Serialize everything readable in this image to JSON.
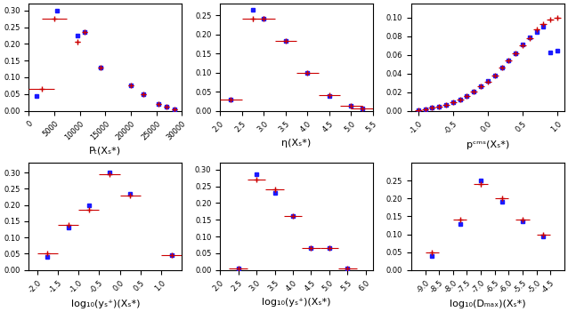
{
  "chart_data": [
    {
      "type": "scatter",
      "x_label": "Pₜ(Xₛ*)",
      "xlim": [
        0,
        30000
      ],
      "ylim": [
        0,
        0.32
      ],
      "xticks": [
        0,
        5000,
        10000,
        15000,
        20000,
        25000,
        30000
      ],
      "yticks": [
        {
          "value": 0,
          "label": "0.00"
        },
        0.05,
        {
          "value": 0.1,
          "label": "0.10"
        },
        0.15,
        {
          "value": 0.2,
          "label": "0.20"
        },
        0.25,
        {
          "value": 0.3,
          "label": "0.30"
        }
      ],
      "series": [
        {
          "color": "#1a1aff",
          "marker": "square",
          "x": [
            1500,
            5500,
            9500,
            11000,
            14000,
            20000,
            22500,
            25500,
            27000,
            28500
          ],
          "values": [
            0.045,
            0.3,
            0.225,
            0.235,
            0.13,
            0.075,
            0.05,
            0.02,
            0.012,
            0.005
          ]
        },
        {
          "color": "#cc0000",
          "marker": "plus",
          "x": [
            2500,
            5000,
            9500,
            11000,
            14000,
            20000,
            22500,
            25500,
            27000,
            28500
          ],
          "values": [
            0.065,
            0.275,
            0.205,
            0.235,
            0.13,
            0.075,
            0.05,
            0.02,
            0.012,
            0.005
          ],
          "xerr": [
            2500,
            2500,
            500,
            500,
            500,
            500,
            500,
            500,
            500,
            500
          ],
          "yerr": [
            0.004,
            0.006,
            0.006,
            0.006,
            0.005,
            0.004,
            0.003,
            0.002,
            0.001,
            0.001
          ]
        }
      ]
    },
    {
      "type": "scatter",
      "x_label": "η(Xₛ*)",
      "xlim": [
        2.0,
        5.5
      ],
      "ylim": [
        0,
        0.28
      ],
      "xticks": [
        2.0,
        2.5,
        3.0,
        3.5,
        4.0,
        4.5,
        5.0,
        5.5
      ],
      "yticks": [
        {
          "value": 0,
          "label": "0.00"
        },
        0.05,
        {
          "value": 0.1,
          "label": "0.10"
        },
        0.15,
        {
          "value": 0.2,
          "label": "0.20"
        },
        0.25
      ],
      "series": [
        {
          "color": "#1a1aff",
          "marker": "square",
          "x": [
            2.25,
            2.75,
            3.0,
            3.5,
            4.0,
            4.5,
            5.0,
            5.25
          ],
          "values": [
            0.03,
            0.265,
            0.242,
            0.183,
            0.098,
            0.038,
            0.013,
            0.005
          ]
        },
        {
          "color": "#cc0000",
          "marker": "plus",
          "x": [
            2.25,
            2.75,
            3.0,
            3.5,
            4.0,
            4.5,
            5.0,
            5.25
          ],
          "values": [
            0.03,
            0.24,
            0.242,
            0.183,
            0.1,
            0.04,
            0.012,
            0.005
          ],
          "xerr": [
            0.25,
            0.25,
            0.25,
            0.25,
            0.25,
            0.25,
            0.25,
            0.25
          ],
          "yerr": [
            0.003,
            0.005,
            0.005,
            0.005,
            0.004,
            0.003,
            0.002,
            0.001
          ]
        }
      ]
    },
    {
      "type": "scatter",
      "x_label": "pᶜᵐˢ(Xₛ*)",
      "xlim": [
        -1.1,
        1.1
      ],
      "ylim": [
        0,
        0.115
      ],
      "xticks": [
        -1.0,
        -0.5,
        0.0,
        0.5,
        1.0
      ],
      "yticks": [
        {
          "value": 0,
          "label": "0.00"
        },
        0.02,
        0.04,
        0.06,
        0.08,
        {
          "value": 0.1,
          "label": "0.10"
        }
      ],
      "series": [
        {
          "color": "#1a1aff",
          "marker": "square",
          "x": [
            -1.0,
            -0.9,
            -0.8,
            -0.7,
            -0.6,
            -0.5,
            -0.4,
            -0.3,
            -0.2,
            -0.1,
            0.0,
            0.1,
            0.2,
            0.3,
            0.4,
            0.5,
            0.6,
            0.7,
            0.8,
            0.9,
            1.0
          ],
          "values": [
            0.001,
            0.002,
            0.003,
            0.004,
            0.006,
            0.009,
            0.012,
            0.016,
            0.021,
            0.026,
            0.032,
            0.038,
            0.046,
            0.054,
            0.062,
            0.071,
            0.079,
            0.085,
            0.09,
            0.063,
            0.065
          ]
        },
        {
          "color": "#cc0000",
          "marker": "plus",
          "x": [
            -1.0,
            -0.9,
            -0.8,
            -0.7,
            -0.6,
            -0.5,
            -0.4,
            -0.3,
            -0.2,
            -0.1,
            0.0,
            0.1,
            0.2,
            0.3,
            0.4,
            0.5,
            0.6,
            0.7,
            0.8,
            0.9,
            1.0
          ],
          "values": [
            0.001,
            0.002,
            0.003,
            0.004,
            0.006,
            0.009,
            0.012,
            0.016,
            0.021,
            0.026,
            0.031,
            0.038,
            0.046,
            0.054,
            0.062,
            0.07,
            0.078,
            0.087,
            0.093,
            0.098,
            0.1
          ],
          "xerr": [
            0.05,
            0.05,
            0.05,
            0.05,
            0.05,
            0.05,
            0.05,
            0.05,
            0.05,
            0.05,
            0.05,
            0.05,
            0.05,
            0.05,
            0.05,
            0.05,
            0.05,
            0.05,
            0.05,
            0.05,
            0.05
          ],
          "yerr": [
            0.001,
            0.001,
            0.001,
            0.001,
            0.001,
            0.001,
            0.001,
            0.001,
            0.001,
            0.001,
            0.001,
            0.001,
            0.001,
            0.001,
            0.001,
            0.001,
            0.001,
            0.001,
            0.001,
            0.001,
            0.002
          ]
        }
      ]
    },
    {
      "type": "scatter",
      "x_label": "log₁₀(yₛ⁺)(Xₛ*)",
      "xlim": [
        -2.2,
        1.5
      ],
      "ylim": [
        0,
        0.33
      ],
      "xticks": [
        -2.0,
        -1.5,
        -1.0,
        -0.5,
        0.0,
        0.5,
        1.0
      ],
      "yticks": [
        {
          "value": 0,
          "label": "0.00"
        },
        0.05,
        {
          "value": 0.1,
          "label": "0.10"
        },
        0.15,
        {
          "value": 0.2,
          "label": "0.20"
        },
        0.25,
        {
          "value": 0.3,
          "label": "0.30"
        }
      ],
      "series": [
        {
          "color": "#1a1aff",
          "marker": "square",
          "x": [
            -1.75,
            -1.25,
            -0.75,
            -0.25,
            0.25,
            1.25
          ],
          "values": [
            0.04,
            0.13,
            0.2,
            0.3,
            0.235,
            0.045
          ]
        },
        {
          "color": "#cc0000",
          "marker": "plus",
          "x": [
            -1.75,
            -1.25,
            -0.75,
            -0.25,
            0.25,
            1.25
          ],
          "values": [
            0.05,
            0.14,
            0.185,
            0.295,
            0.23,
            0.045
          ],
          "xerr": [
            0.25,
            0.25,
            0.25,
            0.25,
            0.25,
            0.25
          ],
          "yerr": [
            0.003,
            0.005,
            0.006,
            0.006,
            0.005,
            0.003
          ]
        }
      ]
    },
    {
      "type": "scatter",
      "x_label": "log₁₀(yₛ⁺)(Xₛ*)",
      "xlim": [
        2.0,
        6.2
      ],
      "ylim": [
        0,
        0.32
      ],
      "xticks": [
        2.0,
        2.5,
        3.0,
        3.5,
        4.0,
        4.5,
        5.0,
        5.5,
        6.0
      ],
      "yticks": [
        {
          "value": 0,
          "label": "0.00"
        },
        0.05,
        {
          "value": 0.1,
          "label": "0.10"
        },
        0.15,
        {
          "value": 0.2,
          "label": "0.20"
        },
        0.25,
        {
          "value": 0.3,
          "label": "0.30"
        }
      ],
      "series": [
        {
          "color": "#1a1aff",
          "marker": "square",
          "x": [
            2.5,
            3.0,
            3.5,
            4.0,
            4.5,
            5.0,
            5.5
          ],
          "values": [
            0.005,
            0.285,
            0.23,
            0.16,
            0.065,
            0.065,
            0.005
          ]
        },
        {
          "color": "#cc0000",
          "marker": "plus",
          "x": [
            2.5,
            3.0,
            3.5,
            4.0,
            4.5,
            5.0,
            5.5
          ],
          "values": [
            0.005,
            0.27,
            0.24,
            0.16,
            0.065,
            0.065,
            0.005
          ],
          "xerr": [
            0.25,
            0.25,
            0.25,
            0.25,
            0.25,
            0.25,
            0.25
          ],
          "yerr": [
            0.001,
            0.006,
            0.006,
            0.005,
            0.003,
            0.003,
            0.001
          ]
        }
      ]
    },
    {
      "type": "scatter",
      "x_label": "log₁₀(Dₘₐₓ)(Xₛ*)",
      "xlim": [
        -9.5,
        -4.0
      ],
      "ylim": [
        0,
        0.3
      ],
      "xticks": [
        -9.0,
        -8.5,
        -8.0,
        -7.5,
        -7.0,
        -6.5,
        -6.0,
        -5.5,
        -5.0,
        -4.5
      ],
      "yticks": [
        {
          "value": 0,
          "label": "0.00"
        },
        0.05,
        {
          "value": 0.1,
          "label": "0.10"
        },
        0.15,
        {
          "value": 0.2,
          "label": "0.20"
        },
        0.25
      ],
      "series": [
        {
          "color": "#1a1aff",
          "marker": "square",
          "x": [
            -8.75,
            -7.75,
            -7.0,
            -6.25,
            -5.5,
            -4.75
          ],
          "values": [
            0.04,
            0.13,
            0.25,
            0.19,
            0.135,
            0.095
          ]
        },
        {
          "color": "#cc0000",
          "marker": "plus",
          "x": [
            -8.75,
            -7.75,
            -7.0,
            -6.25,
            -5.5,
            -4.75
          ],
          "values": [
            0.05,
            0.14,
            0.24,
            0.2,
            0.14,
            0.1
          ],
          "xerr": [
            0.25,
            0.25,
            0.25,
            0.25,
            0.25,
            0.25
          ],
          "yerr": [
            0.003,
            0.005,
            0.006,
            0.005,
            0.005,
            0.003
          ]
        }
      ]
    }
  ]
}
